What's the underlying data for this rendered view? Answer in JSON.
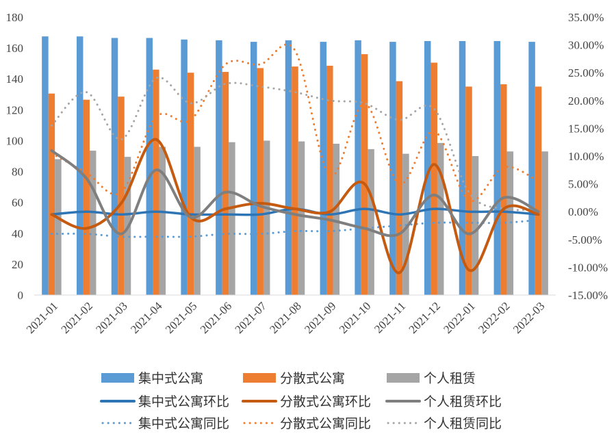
{
  "chart_data": {
    "type": "bar",
    "categories": [
      "2021-01",
      "2021-02",
      "2021-03",
      "2021-04",
      "2021-05",
      "2021-06",
      "2021-07",
      "2021-08",
      "2021-09",
      "2021-10",
      "2021-11",
      "2021-12",
      "2022-01",
      "2022-02",
      "2022-03"
    ],
    "y_left": {
      "min": 0,
      "max": 180,
      "step": 20
    },
    "y_right": {
      "min": -15,
      "max": 35,
      "step": 5,
      "format": "percent"
    },
    "grid": false,
    "legend_position": "bottom",
    "bar_series": [
      {
        "name": "集中式公寓",
        "color": "#5b9bd5",
        "values": [
          167.5,
          167.5,
          166.5,
          166.5,
          165.5,
          165,
          164,
          165,
          164,
          165,
          164,
          164.5,
          164.5,
          164.5,
          164
        ]
      },
      {
        "name": "分散式公寓",
        "color": "#ed7d31",
        "values": [
          130.5,
          126.5,
          128.5,
          146,
          144,
          144.5,
          147,
          148,
          148.5,
          156,
          138.5,
          150.5,
          135,
          136.5,
          135
        ]
      },
      {
        "name": "个人租赁",
        "color": "#a5a5a5",
        "values": [
          88,
          93.5,
          89.5,
          96,
          96,
          99,
          100,
          99.5,
          98,
          94.5,
          91.5,
          98.5,
          90,
          93,
          93
        ]
      }
    ],
    "line_series": [
      {
        "name": "集中式公寓环比",
        "color": "#2e75b6",
        "style": "solid",
        "values": [
          -0.5,
          0,
          -0.5,
          0,
          -0.5,
          -0.5,
          -0.5,
          0.5,
          -0.5,
          0.5,
          -0.5,
          0.5,
          0,
          0,
          -0.5
        ]
      },
      {
        "name": "分散式公寓环比",
        "color": "#c55a11",
        "style": "solid",
        "values": [
          -0.5,
          -3,
          1.5,
          13,
          -1,
          0.5,
          1.5,
          0.5,
          0,
          5,
          -11,
          8.5,
          -10.5,
          0.5,
          -0.5
        ]
      },
      {
        "name": "个人租赁环比",
        "color": "#7f7f7f",
        "style": "solid",
        "values": [
          11,
          6,
          -4,
          7.5,
          -1,
          3.5,
          1,
          -0.5,
          -1.5,
          -3,
          -4,
          3,
          -4,
          2.5,
          0
        ]
      },
      {
        "name": "集中式公寓同比",
        "color": "#5b9bd5",
        "style": "dotted",
        "values": [
          -4,
          -4,
          -4.5,
          -4.5,
          -4.5,
          -4,
          -4,
          -3.5,
          -3.5,
          -3,
          -2.5,
          -2,
          -2,
          -2,
          -1.5
        ]
      },
      {
        "name": "分散式公寓同比",
        "color": "#ed7d31",
        "style": "dotted",
        "values": [
          10.5,
          7,
          3.5,
          17,
          16.5,
          26.5,
          26.5,
          29,
          6.5,
          19.5,
          5,
          14.5,
          2,
          8,
          5.5
        ]
      },
      {
        "name": "个人租赁同比",
        "color": "#a5a5a5",
        "style": "dotted",
        "values": [
          15.5,
          21.5,
          13,
          24,
          19.5,
          23,
          22.5,
          21.5,
          20,
          19.5,
          16.5,
          18.5,
          3.5,
          0.5,
          0.5
        ]
      }
    ]
  }
}
